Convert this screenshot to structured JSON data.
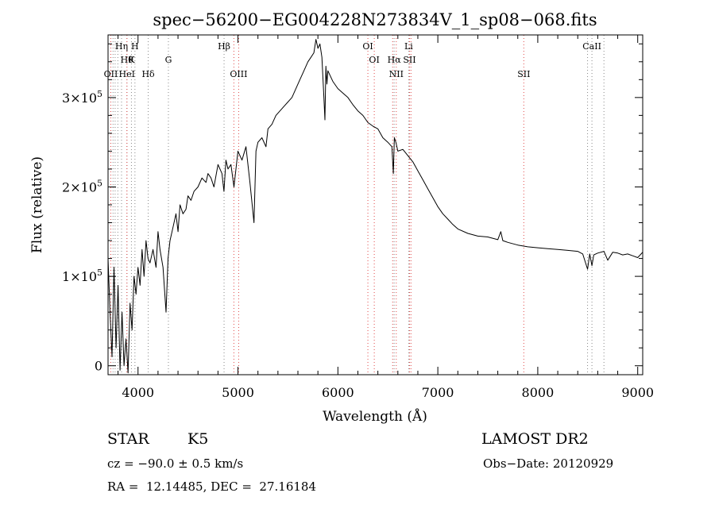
{
  "chart_data": {
    "type": "line",
    "title": "spec−56200−EG004228N273834V_1_sp08−068.fits",
    "xlabel": "Wavelength (Å)",
    "ylabel": "Flux (relative)",
    "xlim": [
      3700,
      9050
    ],
    "ylim": [
      -10000,
      370000
    ],
    "xticks": [
      {
        "value": 4000,
        "label": "4000"
      },
      {
        "value": 5000,
        "label": "5000"
      },
      {
        "value": 6000,
        "label": "6000"
      },
      {
        "value": 7000,
        "label": "7000"
      },
      {
        "value": 8000,
        "label": "8000"
      },
      {
        "value": 9000,
        "label": "9000"
      }
    ],
    "yticks": [
      {
        "value": 0,
        "label": "0",
        "exp": ""
      },
      {
        "value": 100000,
        "label": "1×10",
        "exp": "5"
      },
      {
        "value": 200000,
        "label": "2×10",
        "exp": "5"
      },
      {
        "value": 300000,
        "label": "3×10",
        "exp": "5"
      }
    ],
    "grid": false,
    "series": [
      {
        "color": "#000000",
        "x": [
          3700,
          3720,
          3740,
          3760,
          3780,
          3800,
          3820,
          3840,
          3860,
          3880,
          3900,
          3920,
          3940,
          3960,
          3980,
          4000,
          4020,
          4040,
          4060,
          4080,
          4100,
          4120,
          4150,
          4180,
          4200,
          4220,
          4250,
          4280,
          4300,
          4320,
          4350,
          4380,
          4400,
          4420,
          4450,
          4480,
          4500,
          4530,
          4560,
          4600,
          4640,
          4680,
          4700,
          4730,
          4760,
          4800,
          4840,
          4860,
          4880,
          4900,
          4930,
          4960,
          5000,
          5040,
          5080,
          5120,
          5160,
          5180,
          5200,
          5240,
          5280,
          5300,
          5340,
          5380,
          5420,
          5460,
          5500,
          5540,
          5580,
          5620,
          5660,
          5700,
          5730,
          5760,
          5780,
          5800,
          5820,
          5840,
          5860,
          5870,
          5880,
          5890,
          5900,
          5920,
          5950,
          6000,
          6050,
          6100,
          6150,
          6200,
          6250,
          6300,
          6350,
          6400,
          6450,
          6500,
          6540,
          6555,
          6565,
          6580,
          6600,
          6650,
          6700,
          6750,
          6800,
          6850,
          6900,
          6950,
          7000,
          7050,
          7100,
          7150,
          7200,
          7300,
          7400,
          7500,
          7600,
          7630,
          7650,
          7700,
          7800,
          7900,
          8000,
          8100,
          8200,
          8300,
          8400,
          8450,
          8498,
          8520,
          8542,
          8560,
          8600,
          8662,
          8700,
          8750,
          8800,
          8850,
          8900,
          8950,
          9000,
          9050
        ],
        "y": [
          120000,
          60000,
          10000,
          110000,
          20000,
          90000,
          -5000,
          60000,
          0,
          30000,
          -8000,
          70000,
          40000,
          100000,
          80000,
          110000,
          90000,
          130000,
          100000,
          140000,
          120000,
          115000,
          130000,
          110000,
          150000,
          130000,
          110000,
          60000,
          120000,
          140000,
          155000,
          170000,
          150000,
          180000,
          170000,
          175000,
          190000,
          185000,
          195000,
          200000,
          210000,
          205000,
          215000,
          210000,
          200000,
          225000,
          215000,
          195000,
          230000,
          220000,
          225000,
          200000,
          240000,
          230000,
          245000,
          205000,
          160000,
          240000,
          250000,
          255000,
          245000,
          265000,
          270000,
          280000,
          285000,
          290000,
          295000,
          300000,
          310000,
          320000,
          330000,
          340000,
          345000,
          350000,
          365000,
          355000,
          360000,
          345000,
          300000,
          275000,
          335000,
          315000,
          330000,
          325000,
          318000,
          310000,
          305000,
          300000,
          292000,
          285000,
          280000,
          272000,
          268000,
          265000,
          255000,
          250000,
          245000,
          215000,
          255000,
          250000,
          240000,
          242000,
          235000,
          228000,
          218000,
          208000,
          198000,
          188000,
          178000,
          170000,
          164000,
          158000,
          153000,
          148000,
          145000,
          144000,
          141000,
          150000,
          140000,
          138000,
          135000,
          133000,
          132000,
          131000,
          130000,
          129000,
          128000,
          125000,
          108000,
          125000,
          112000,
          124000,
          126000,
          128000,
          118000,
          127000,
          126000,
          124000,
          125000,
          123000,
          121000,
          127000
        ]
      }
    ],
    "lines": [
      {
        "x": 3728,
        "group": "emission",
        "label": "OII",
        "row": 3
      },
      {
        "x": 3750,
        "group": "absorption",
        "label": "",
        "row": 0
      },
      {
        "x": 3771,
        "group": "absorption",
        "label": "",
        "row": 0
      },
      {
        "x": 3798,
        "group": "absorption",
        "label": "",
        "row": 0
      },
      {
        "x": 3835,
        "group": "absorption",
        "label": "Hη",
        "row": 1
      },
      {
        "x": 3889,
        "group": "absorption",
        "label": "Hθ",
        "row": 2
      },
      {
        "x": 3889,
        "group": "emission",
        "label": "HeI",
        "row": 3
      },
      {
        "x": 3934,
        "group": "absorption",
        "label": "K",
        "row": 2
      },
      {
        "x": 3969,
        "group": "absorption",
        "label": "H",
        "row": 1
      },
      {
        "x": 4102,
        "group": "absorption",
        "label": "Hδ",
        "row": 3
      },
      {
        "x": 4304,
        "group": "absorption",
        "label": "G",
        "row": 2
      },
      {
        "x": 4861,
        "group": "absorption",
        "label": "Hβ",
        "row": 1
      },
      {
        "x": 4959,
        "group": "emission",
        "label": "",
        "row": 0
      },
      {
        "x": 5007,
        "group": "emission",
        "label": "OIII",
        "row": 3
      },
      {
        "x": 6300,
        "group": "emission",
        "label": "OI",
        "row": 1
      },
      {
        "x": 6364,
        "group": "emission",
        "label": "OI",
        "row": 2
      },
      {
        "x": 6548,
        "group": "emission",
        "label": "",
        "row": 0
      },
      {
        "x": 6563,
        "group": "absorption",
        "label": "Hα",
        "row": 2
      },
      {
        "x": 6584,
        "group": "emission",
        "label": "NII",
        "row": 3
      },
      {
        "x": 6708,
        "group": "absorption",
        "label": "Li",
        "row": 1
      },
      {
        "x": 6717,
        "group": "emission",
        "label": "SII",
        "row": 2
      },
      {
        "x": 6731,
        "group": "emission",
        "label": "",
        "row": 0
      },
      {
        "x": 7860,
        "group": "emission",
        "label": "SII",
        "row": 3
      },
      {
        "x": 8498,
        "group": "absorption",
        "label": "",
        "row": 0
      },
      {
        "x": 8542,
        "group": "absorption",
        "label": "CaII",
        "row": 1
      },
      {
        "x": 8662,
        "group": "absorption",
        "label": "",
        "row": 0
      }
    ],
    "line_colors": {
      "absorption": "#888888",
      "emission": "#e04848"
    }
  },
  "info": {
    "class": "STAR",
    "subclass": "K5",
    "survey": "LAMOST DR2",
    "redshift": "cz = −90.0 ± 0.5 km/s",
    "obs_date": "Obs−Date: 20120929",
    "coords": "RA =  12.14485, DEC =  27.16184"
  }
}
